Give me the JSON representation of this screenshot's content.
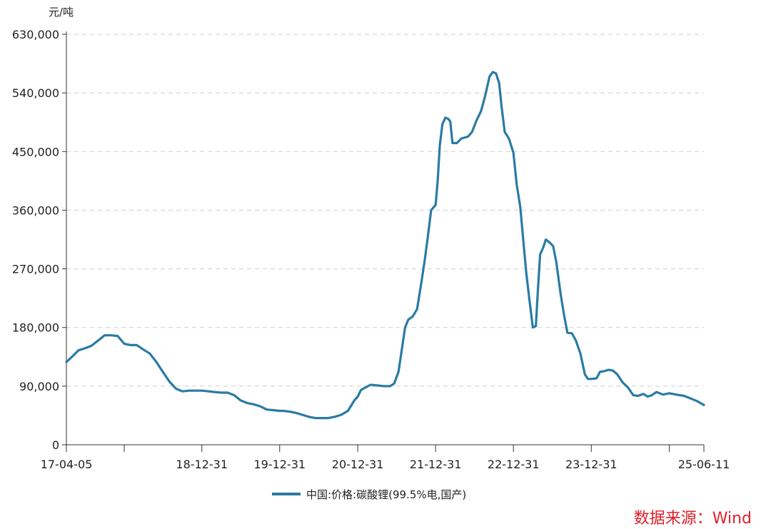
{
  "chart_data": {
    "type": "line",
    "title": "",
    "xlabel": "",
    "ylabel": "",
    "unit": "元/吨",
    "ylim": [
      0,
      630000
    ],
    "yticks": [
      0,
      90000,
      180000,
      270000,
      360000,
      450000,
      540000,
      630000
    ],
    "ytick_labels": [
      "0",
      "90,000",
      "180,000",
      "270,000",
      "360,000",
      "450,000",
      "540,000",
      "630,000"
    ],
    "xlim": [
      "2017-04-05",
      "2025-06-11"
    ],
    "xtick_marks": [
      "2017-04-05",
      "2018-01-01",
      "2018-12-31",
      "2019-12-31",
      "2020-12-31",
      "2021-12-31",
      "2022-12-31",
      "2023-12-31",
      "2024-12-31",
      "2025-06-11"
    ],
    "xtick_labels": [
      {
        "date": "2017-04-05",
        "label": "17-04-05"
      },
      {
        "date": "2018-12-31",
        "label": "18-12-31"
      },
      {
        "date": "2019-12-31",
        "label": "19-12-31"
      },
      {
        "date": "2020-12-31",
        "label": "20-12-31"
      },
      {
        "date": "2021-12-31",
        "label": "21-12-31"
      },
      {
        "date": "2022-12-31",
        "label": "22-12-31"
      },
      {
        "date": "2023-12-31",
        "label": "23-12-31"
      },
      {
        "date": "2025-06-11",
        "label": "25-06-11"
      }
    ],
    "grid": true,
    "legend_position": "bottom-center",
    "series": [
      {
        "name": "中国:价格:碳酸锂(99.5%电,国产)",
        "color": "#2a7ba3",
        "points": [
          [
            "2017-04-05",
            127000
          ],
          [
            "2017-05-01",
            135000
          ],
          [
            "2017-06-01",
            145000
          ],
          [
            "2017-07-01",
            148000
          ],
          [
            "2017-08-01",
            152000
          ],
          [
            "2017-09-01",
            160000
          ],
          [
            "2017-10-01",
            168000
          ],
          [
            "2017-11-01",
            168000
          ],
          [
            "2017-12-01",
            167000
          ],
          [
            "2018-01-01",
            155000
          ],
          [
            "2018-02-01",
            153000
          ],
          [
            "2018-03-01",
            153000
          ],
          [
            "2018-04-01",
            146000
          ],
          [
            "2018-05-01",
            140000
          ],
          [
            "2018-06-01",
            127000
          ],
          [
            "2018-07-01",
            112000
          ],
          [
            "2018-08-01",
            97000
          ],
          [
            "2018-09-01",
            86000
          ],
          [
            "2018-10-01",
            82000
          ],
          [
            "2018-11-01",
            83000
          ],
          [
            "2018-12-31",
            83000
          ],
          [
            "2019-02-01",
            82000
          ],
          [
            "2019-03-01",
            81000
          ],
          [
            "2019-04-01",
            80000
          ],
          [
            "2019-05-01",
            80000
          ],
          [
            "2019-06-01",
            76000
          ],
          [
            "2019-07-01",
            68000
          ],
          [
            "2019-08-01",
            64000
          ],
          [
            "2019-09-01",
            62000
          ],
          [
            "2019-10-01",
            59000
          ],
          [
            "2019-11-01",
            54000
          ],
          [
            "2019-12-31",
            52000
          ],
          [
            "2020-01-15",
            52000
          ],
          [
            "2020-02-15",
            51000
          ],
          [
            "2020-03-15",
            49000
          ],
          [
            "2020-04-15",
            46000
          ],
          [
            "2020-05-15",
            43000
          ],
          [
            "2020-06-15",
            41000
          ],
          [
            "2020-07-15",
            41000
          ],
          [
            "2020-08-15",
            41000
          ],
          [
            "2020-09-15",
            43000
          ],
          [
            "2020-10-15",
            46000
          ],
          [
            "2020-11-15",
            52000
          ],
          [
            "2020-12-15",
            68000
          ],
          [
            "2020-12-31",
            74000
          ],
          [
            "2021-01-15",
            84000
          ],
          [
            "2021-02-05",
            88000
          ],
          [
            "2021-03-01",
            92000
          ],
          [
            "2021-04-01",
            91000
          ],
          [
            "2021-05-01",
            90000
          ],
          [
            "2021-06-01",
            90000
          ],
          [
            "2021-06-20",
            94000
          ],
          [
            "2021-07-10",
            112000
          ],
          [
            "2021-07-25",
            145000
          ],
          [
            "2021-08-10",
            180000
          ],
          [
            "2021-08-25",
            192000
          ],
          [
            "2021-09-15",
            197000
          ],
          [
            "2021-10-05",
            208000
          ],
          [
            "2021-10-25",
            248000
          ],
          [
            "2021-11-10",
            283000
          ],
          [
            "2021-11-25",
            320000
          ],
          [
            "2021-12-10",
            360000
          ],
          [
            "2021-12-31",
            368000
          ],
          [
            "2022-01-10",
            405000
          ],
          [
            "2022-01-20",
            460000
          ],
          [
            "2022-02-01",
            492000
          ],
          [
            "2022-02-15",
            502000
          ],
          [
            "2022-03-01",
            500000
          ],
          [
            "2022-03-10",
            496000
          ],
          [
            "2022-03-20",
            463000
          ],
          [
            "2022-04-10",
            463000
          ],
          [
            "2022-05-01",
            470000
          ],
          [
            "2022-06-01",
            473000
          ],
          [
            "2022-06-20",
            480000
          ],
          [
            "2022-07-10",
            497000
          ],
          [
            "2022-08-01",
            512000
          ],
          [
            "2022-08-20",
            535000
          ],
          [
            "2022-09-10",
            565000
          ],
          [
            "2022-09-25",
            572000
          ],
          [
            "2022-10-10",
            570000
          ],
          [
            "2022-10-25",
            555000
          ],
          [
            "2022-11-05",
            520000
          ],
          [
            "2022-11-20",
            480000
          ],
          [
            "2022-12-10",
            470000
          ],
          [
            "2022-12-31",
            448000
          ],
          [
            "2023-01-15",
            400000
          ],
          [
            "2023-02-01",
            365000
          ],
          [
            "2023-02-15",
            315000
          ],
          [
            "2023-03-01",
            265000
          ],
          [
            "2023-03-15",
            225000
          ],
          [
            "2023-04-01",
            180000
          ],
          [
            "2023-04-15",
            182000
          ],
          [
            "2023-04-25",
            240000
          ],
          [
            "2023-05-05",
            292000
          ],
          [
            "2023-05-20",
            303000
          ],
          [
            "2023-06-01",
            315000
          ],
          [
            "2023-06-20",
            310000
          ],
          [
            "2023-07-05",
            305000
          ],
          [
            "2023-07-20",
            280000
          ],
          [
            "2023-08-10",
            230000
          ],
          [
            "2023-08-25",
            200000
          ],
          [
            "2023-09-10",
            172000
          ],
          [
            "2023-10-01",
            171000
          ],
          [
            "2023-10-20",
            160000
          ],
          [
            "2023-11-10",
            140000
          ],
          [
            "2023-12-01",
            108000
          ],
          [
            "2023-12-15",
            101000
          ],
          [
            "2023-12-31",
            101000
          ],
          [
            "2024-01-25",
            102000
          ],
          [
            "2024-02-10",
            112000
          ],
          [
            "2024-03-01",
            113000
          ],
          [
            "2024-03-20",
            115000
          ],
          [
            "2024-04-10",
            114000
          ],
          [
            "2024-05-01",
            108000
          ],
          [
            "2024-05-25",
            96000
          ],
          [
            "2024-06-20",
            88000
          ],
          [
            "2024-07-15",
            76000
          ],
          [
            "2024-08-05",
            75000
          ],
          [
            "2024-09-01",
            78000
          ],
          [
            "2024-09-20",
            74000
          ],
          [
            "2024-10-10",
            76000
          ],
          [
            "2024-11-01",
            81000
          ],
          [
            "2024-12-01",
            77000
          ],
          [
            "2024-12-31",
            79000
          ],
          [
            "2025-02-01",
            77000
          ],
          [
            "2025-03-10",
            75000
          ],
          [
            "2025-04-10",
            71000
          ],
          [
            "2025-05-10",
            67000
          ],
          [
            "2025-06-11",
            61000
          ]
        ]
      }
    ]
  },
  "source_text": "数据来源：Wind"
}
